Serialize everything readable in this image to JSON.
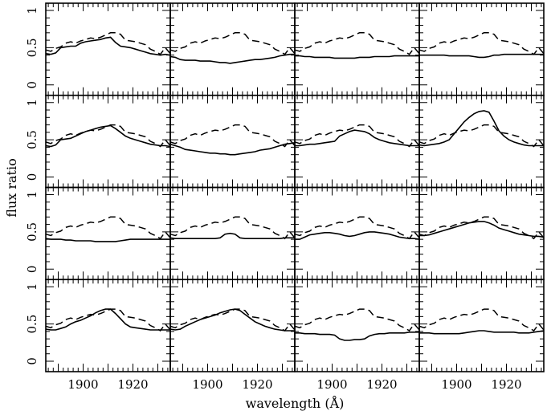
{
  "chart_data": {
    "type": "line",
    "layout": "4x4 grid of panels sharing axes",
    "xlabel": "wavelength (Å)",
    "ylabel": "flux ratio",
    "xlim": [
      1885,
      1935
    ],
    "ylim": [
      0,
      1
    ],
    "x_tick_labels": [
      "1900",
      "1920"
    ],
    "x_ticks": [
      1900,
      1920
    ],
    "y_tick_labels": [
      "0",
      "0.5",
      "1"
    ],
    "y_ticks": [
      0,
      0.5,
      1
    ],
    "x": [
      1885,
      1887,
      1889,
      1891,
      1893,
      1895,
      1897,
      1899,
      1901,
      1903,
      1905,
      1907,
      1909,
      1911,
      1913,
      1915,
      1917,
      1919,
      1921,
      1923,
      1925,
      1927,
      1929,
      1931,
      1933,
      1935
    ],
    "series_styles": [
      "solid",
      "dashed"
    ],
    "dashed_reference": [
      0.47,
      0.45,
      0.49,
      0.51,
      0.56,
      0.58,
      0.56,
      0.59,
      0.61,
      0.63,
      0.62,
      0.64,
      0.67,
      0.7,
      0.7,
      0.68,
      0.6,
      0.59,
      0.58,
      0.56,
      0.54,
      0.48,
      0.45,
      0.41,
      0.5,
      0.42
    ],
    "panels": [
      {
        "row": 1,
        "col": 1,
        "solid": [
          0.42,
          0.41,
          0.43,
          0.5,
          0.51,
          0.52,
          0.52,
          0.56,
          0.58,
          0.59,
          0.6,
          0.61,
          0.63,
          0.64,
          0.57,
          0.52,
          0.51,
          0.5,
          0.48,
          0.46,
          0.44,
          0.42,
          0.41,
          0.4,
          0.41,
          0.4
        ]
      },
      {
        "row": 1,
        "col": 2,
        "solid": [
          0.38,
          0.37,
          0.34,
          0.33,
          0.33,
          0.33,
          0.32,
          0.32,
          0.32,
          0.31,
          0.3,
          0.3,
          0.29,
          0.3,
          0.31,
          0.32,
          0.33,
          0.34,
          0.34,
          0.35,
          0.36,
          0.37,
          0.39,
          0.4,
          0.41,
          0.41
        ]
      },
      {
        "row": 1,
        "col": 3,
        "solid": [
          0.39,
          0.39,
          0.38,
          0.38,
          0.37,
          0.37,
          0.37,
          0.37,
          0.36,
          0.36,
          0.36,
          0.36,
          0.36,
          0.37,
          0.37,
          0.37,
          0.38,
          0.38,
          0.38,
          0.38,
          0.39,
          0.39,
          0.39,
          0.39,
          0.39,
          0.39
        ]
      },
      {
        "row": 1,
        "col": 4,
        "solid": [
          0.4,
          0.4,
          0.4,
          0.4,
          0.4,
          0.4,
          0.39,
          0.39,
          0.39,
          0.39,
          0.39,
          0.38,
          0.37,
          0.37,
          0.38,
          0.4,
          0.4,
          0.41,
          0.41,
          0.41,
          0.41,
          0.41,
          0.41,
          0.41,
          0.41,
          0.41
        ]
      },
      {
        "row": 2,
        "col": 1,
        "solid": [
          0.42,
          0.41,
          0.43,
          0.5,
          0.51,
          0.52,
          0.55,
          0.58,
          0.61,
          0.63,
          0.65,
          0.67,
          0.68,
          0.69,
          0.65,
          0.6,
          0.55,
          0.52,
          0.5,
          0.48,
          0.46,
          0.44,
          0.43,
          0.42,
          0.42,
          0.41
        ]
      },
      {
        "row": 2,
        "col": 2,
        "solid": [
          0.44,
          0.42,
          0.4,
          0.37,
          0.36,
          0.35,
          0.34,
          0.33,
          0.32,
          0.32,
          0.31,
          0.31,
          0.3,
          0.3,
          0.31,
          0.32,
          0.33,
          0.34,
          0.36,
          0.37,
          0.38,
          0.4,
          0.42,
          0.44,
          0.45,
          0.46
        ]
      },
      {
        "row": 2,
        "col": 3,
        "solid": [
          0.42,
          0.42,
          0.43,
          0.44,
          0.44,
          0.45,
          0.46,
          0.47,
          0.48,
          0.55,
          0.58,
          0.61,
          0.63,
          0.62,
          0.61,
          0.58,
          0.53,
          0.5,
          0.48,
          0.46,
          0.45,
          0.44,
          0.43,
          0.42,
          0.42,
          0.42
        ]
      },
      {
        "row": 2,
        "col": 4,
        "solid": [
          0.43,
          0.42,
          0.43,
          0.44,
          0.45,
          0.47,
          0.5,
          0.58,
          0.66,
          0.74,
          0.8,
          0.85,
          0.88,
          0.89,
          0.87,
          0.75,
          0.62,
          0.55,
          0.5,
          0.47,
          0.45,
          0.43,
          0.42,
          0.42,
          0.42,
          0.42
        ]
      },
      {
        "row": 3,
        "col": 1,
        "solid": [
          0.41,
          0.4,
          0.4,
          0.4,
          0.39,
          0.39,
          0.38,
          0.38,
          0.38,
          0.38,
          0.37,
          0.37,
          0.37,
          0.37,
          0.37,
          0.38,
          0.39,
          0.4,
          0.4,
          0.4,
          0.4,
          0.4,
          0.4,
          0.4,
          0.4,
          0.4
        ]
      },
      {
        "row": 3,
        "col": 2,
        "solid": [
          0.42,
          0.41,
          0.41,
          0.41,
          0.41,
          0.41,
          0.41,
          0.41,
          0.41,
          0.41,
          0.42,
          0.47,
          0.48,
          0.47,
          0.42,
          0.41,
          0.41,
          0.41,
          0.41,
          0.41,
          0.41,
          0.41,
          0.41,
          0.42,
          0.42,
          0.42
        ]
      },
      {
        "row": 3,
        "col": 3,
        "solid": [
          0.4,
          0.4,
          0.43,
          0.46,
          0.47,
          0.48,
          0.49,
          0.49,
          0.48,
          0.47,
          0.45,
          0.44,
          0.45,
          0.47,
          0.49,
          0.5,
          0.5,
          0.49,
          0.48,
          0.47,
          0.45,
          0.43,
          0.42,
          0.41,
          0.41,
          0.4
        ]
      },
      {
        "row": 3,
        "col": 4,
        "solid": [
          0.45,
          0.45,
          0.46,
          0.48,
          0.5,
          0.52,
          0.54,
          0.56,
          0.58,
          0.6,
          0.62,
          0.63,
          0.64,
          0.64,
          0.62,
          0.59,
          0.55,
          0.53,
          0.51,
          0.49,
          0.47,
          0.46,
          0.45,
          0.44,
          0.44,
          0.43
        ]
      },
      {
        "row": 4,
        "col": 1,
        "solid": [
          0.43,
          0.42,
          0.42,
          0.44,
          0.46,
          0.5,
          0.53,
          0.55,
          0.58,
          0.61,
          0.65,
          0.68,
          0.7,
          0.7,
          0.64,
          0.57,
          0.5,
          0.46,
          0.45,
          0.44,
          0.43,
          0.42,
          0.42,
          0.42,
          0.42,
          0.42
        ]
      },
      {
        "row": 4,
        "col": 2,
        "solid": [
          0.43,
          0.42,
          0.43,
          0.47,
          0.5,
          0.53,
          0.56,
          0.58,
          0.6,
          0.62,
          0.65,
          0.67,
          0.69,
          0.7,
          0.68,
          0.63,
          0.58,
          0.53,
          0.5,
          0.47,
          0.45,
          0.43,
          0.42,
          0.41,
          0.41,
          0.41
        ]
      },
      {
        "row": 4,
        "col": 3,
        "solid": [
          0.38,
          0.38,
          0.37,
          0.37,
          0.37,
          0.36,
          0.36,
          0.36,
          0.35,
          0.3,
          0.28,
          0.28,
          0.29,
          0.29,
          0.3,
          0.34,
          0.36,
          0.37,
          0.37,
          0.38,
          0.38,
          0.38,
          0.38,
          0.39,
          0.39,
          0.39
        ]
      },
      {
        "row": 4,
        "col": 4,
        "solid": [
          0.38,
          0.38,
          0.38,
          0.37,
          0.37,
          0.37,
          0.37,
          0.37,
          0.37,
          0.38,
          0.39,
          0.4,
          0.41,
          0.41,
          0.4,
          0.39,
          0.39,
          0.39,
          0.39,
          0.39,
          0.38,
          0.38,
          0.38,
          0.39,
          0.4,
          0.41
        ]
      }
    ]
  }
}
